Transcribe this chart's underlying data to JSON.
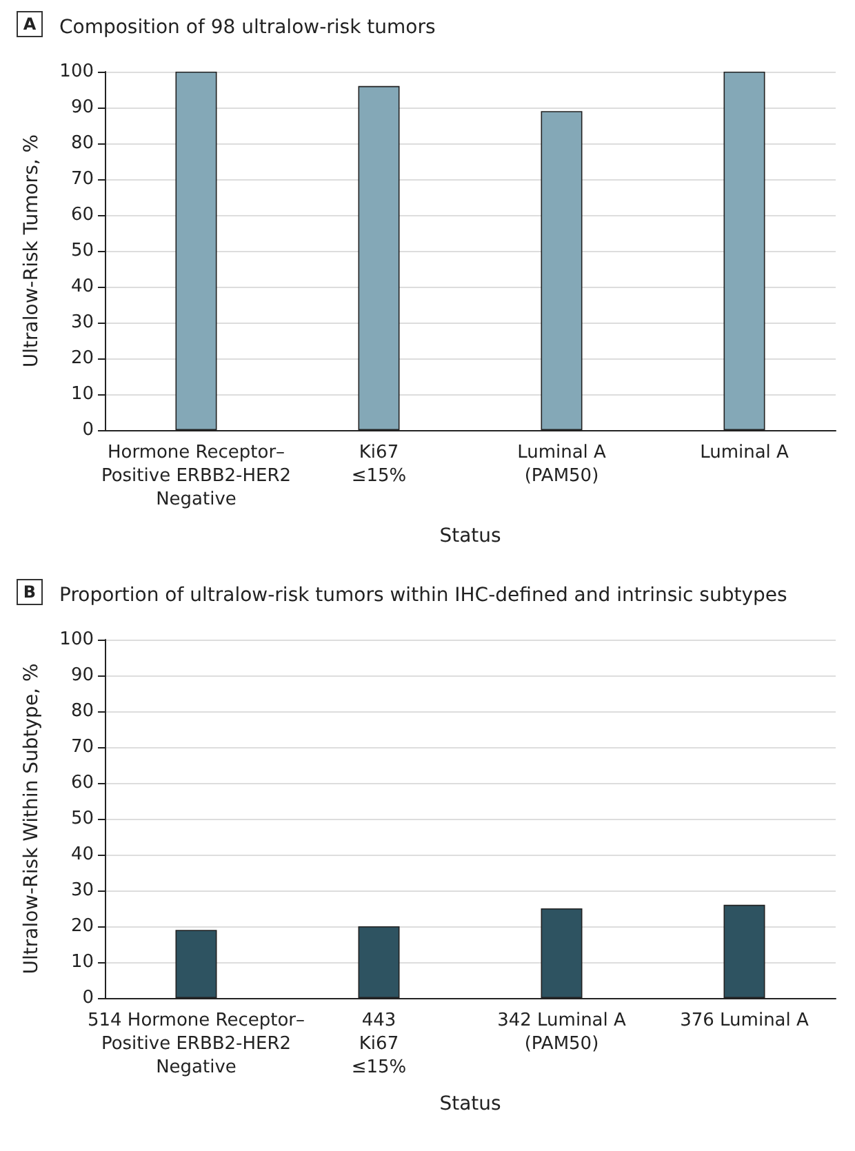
{
  "chart_data": [
    {
      "type": "bar",
      "title": "Composition of 98 ultralow-risk tumors",
      "annotations": [
        "A"
      ],
      "xlabel": "Status",
      "ylabel": "Ultralow-Risk Tumors, %",
      "categories": [
        "Hormone Receptor–\nPositive ERBB2-HER2\nNegative",
        "Ki67\n≤15%",
        "Luminal A\n(PAM50)",
        "Luminal A"
      ],
      "values": [
        100,
        96,
        89,
        100
      ],
      "color": "#84a8b7",
      "ylim": [
        0,
        100
      ],
      "yticks": [
        0,
        10,
        20,
        30,
        40,
        50,
        60,
        70,
        80,
        90,
        100
      ],
      "grid": "y"
    },
    {
      "type": "bar",
      "title": "Proportion of ultralow-risk tumors within IHC-defined and intrinsic subtypes",
      "annotations": [
        "B"
      ],
      "xlabel": "Status",
      "ylabel": "Ultralow-Risk Within Subtype, %",
      "categories": [
        "514 Hormone Receptor–\nPositive ERBB2-HER2\nNegative",
        "443\nKi67\n≤15%",
        "342 Luminal A\n(PAM50)",
        "376 Luminal A"
      ],
      "values": [
        19,
        20,
        25,
        26
      ],
      "color": "#2e5361",
      "ylim": [
        0,
        100
      ],
      "yticks": [
        0,
        10,
        20,
        30,
        40,
        50,
        60,
        70,
        80,
        90,
        100
      ],
      "grid": "y"
    }
  ]
}
